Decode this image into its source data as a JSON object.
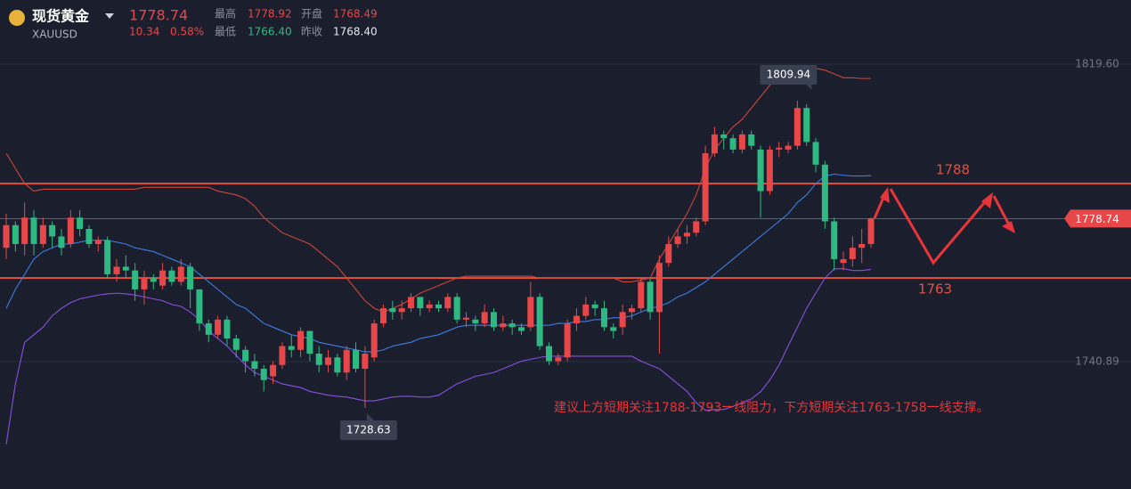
{
  "header": {
    "name": "现货黄金",
    "symbol": "XAUUSD",
    "price": "1778.74",
    "change": "10.34",
    "change_pct": "0.58%",
    "high_label": "最高",
    "high": "1778.92",
    "open_label": "开盘",
    "open": "1768.49",
    "low_label": "最低",
    "low": "1766.40",
    "prev_label": "昨收",
    "prev": "1768.40"
  },
  "chart_data": {
    "type": "candlestick",
    "up_color": "#e8474a",
    "down_color": "#2fb982",
    "ylim": [
      1707.18,
      1836.57
    ],
    "yticks": [
      {
        "value": 1819.6,
        "label": "1819.60"
      },
      1740.89
    ],
    "grid": true,
    "open": [
      1771,
      1777,
      1772,
      1779,
      1772,
      1777,
      1774,
      1772,
      1779,
      1776,
      1772,
      1773,
      1764,
      1766,
      1765,
      1760,
      1763,
      1761,
      1765,
      1762,
      1766,
      1760,
      1751,
      1748,
      1752,
      1747,
      1744,
      1741,
      1739,
      1737,
      1740,
      1745,
      1744,
      1749,
      1743,
      1740,
      1742,
      1738,
      1744,
      1739,
      1742,
      1751,
      1755,
      1754,
      1755,
      1758,
      1755,
      1756,
      1755,
      1758,
      1752,
      1752,
      1751,
      1754,
      1750,
      1751,
      1750,
      1750,
      1758,
      1745,
      1741,
      1742,
      1751,
      1753,
      1756,
      1755,
      1750,
      1750,
      1754,
      1755,
      1762,
      1754,
      1767,
      1772,
      1774,
      1775,
      1778,
      1796,
      1801,
      1800,
      1797,
      1801,
      1797,
      1786,
      1797,
      1797,
      1798,
      1808,
      1799,
      1793,
      1778,
      1767,
      1768,
      1771,
      1772
    ],
    "high": [
      1780,
      1778,
      1783,
      1781,
      1779,
      1778,
      1776,
      1781,
      1781,
      1777,
      1774,
      1774,
      1768,
      1769,
      1767,
      1765,
      1764,
      1767,
      1766,
      1768,
      1767,
      1760,
      1752,
      1753,
      1753,
      1748,
      1745,
      1743,
      1740,
      1741,
      1746,
      1748,
      1750,
      1749,
      1745,
      1744,
      1743,
      1745,
      1746,
      1745,
      1752,
      1756,
      1757,
      1757,
      1759,
      1758,
      1757,
      1757,
      1759,
      1759,
      1754,
      1753,
      1756,
      1755,
      1753,
      1752,
      1751,
      1762,
      1759,
      1746,
      1743,
      1752,
      1755,
      1758,
      1757,
      1757,
      1751,
      1756,
      1756,
      1763,
      1763,
      1769,
      1774,
      1776,
      1777,
      1779,
      1798,
      1803,
      1802,
      1801,
      1802,
      1802,
      1798,
      1798,
      1799,
      1799,
      1809.94,
      1809,
      1800,
      1794,
      1779,
      1770,
      1774,
      1776,
      1779
    ],
    "low": [
      1768,
      1770,
      1769,
      1769,
      1771,
      1771,
      1769,
      1771,
      1774,
      1771,
      1770,
      1763,
      1762,
      1763,
      1757,
      1756,
      1760,
      1760,
      1761,
      1761,
      1755,
      1749,
      1746,
      1747,
      1745,
      1742,
      1738,
      1737,
      1733,
      1735,
      1739,
      1742,
      1742,
      1741,
      1738,
      1738,
      1737,
      1736,
      1738,
      1728.63,
      1741,
      1750,
      1752,
      1752,
      1754,
      1753,
      1754,
      1754,
      1754,
      1751,
      1750,
      1749,
      1750,
      1749,
      1749,
      1748,
      1748,
      1749,
      1744,
      1740,
      1740,
      1741,
      1749,
      1752,
      1753,
      1749,
      1747,
      1748,
      1752,
      1754,
      1752,
      1743,
      1766,
      1771,
      1772,
      1774,
      1777,
      1795,
      1797,
      1796,
      1796,
      1797,
      1779,
      1785,
      1795,
      1796,
      1797,
      1798,
      1791,
      1776,
      1765,
      1765,
      1766,
      1767,
      1771
    ],
    "close": [
      1777,
      1772,
      1779,
      1772,
      1777,
      1774,
      1771,
      1779,
      1776,
      1772,
      1773,
      1764,
      1766,
      1765,
      1760,
      1763,
      1762,
      1765,
      1762,
      1766,
      1760,
      1751,
      1748,
      1752,
      1747,
      1744,
      1741,
      1739,
      1736,
      1740,
      1745,
      1744,
      1749,
      1743,
      1740,
      1742,
      1738,
      1744,
      1739,
      1743,
      1751,
      1755,
      1754,
      1755,
      1758,
      1755,
      1756,
      1755,
      1758,
      1752,
      1752.5,
      1751,
      1754,
      1750,
      1751,
      1750,
      1749,
      1758,
      1745,
      1741,
      1742,
      1751,
      1753,
      1756,
      1755,
      1750,
      1749,
      1754,
      1755,
      1762,
      1754,
      1767,
      1772,
      1774,
      1775,
      1778,
      1796,
      1801,
      1800,
      1797,
      1801,
      1798,
      1786,
      1797,
      1797.5,
      1798,
      1808,
      1799,
      1793,
      1778,
      1768,
      1768,
      1771,
      1772,
      1778.74
    ],
    "bands": [
      {
        "color": "#c8473a",
        "values": [
          1796,
          1792,
          1788,
          1786,
          1786.5,
          1786.5,
          1786.5,
          1786.5,
          1786.5,
          1786.5,
          1786.5,
          1786.5,
          1786.5,
          1786.5,
          1786.5,
          1787,
          1787,
          1787,
          1787,
          1787,
          1787,
          1787,
          1787,
          1786,
          1785.5,
          1785,
          1784,
          1782,
          1779,
          1777,
          1775,
          1774,
          1773,
          1772,
          1770,
          1768,
          1766,
          1763,
          1760,
          1757,
          1755,
          1754,
          1755,
          1756,
          1757.5,
          1759,
          1760,
          1761,
          1762,
          1763,
          1763.5,
          1763.5,
          1763.5,
          1763.5,
          1763.5,
          1763.5,
          1763.5,
          1763.5,
          1763,
          1763,
          1763,
          1763,
          1763,
          1763,
          1763,
          1763,
          1763,
          1762,
          1762,
          1762.5,
          1763,
          1768,
          1772,
          1776,
          1780,
          1785,
          1792,
          1797,
          1800,
          1803,
          1805,
          1808,
          1811,
          1814,
          1817,
          1818,
          1819,
          1819,
          1818.5,
          1818,
          1817,
          1816,
          1816,
          1815.8,
          1815.8
        ]
      },
      {
        "color": "#3c7de0",
        "values": [
          1755,
          1760,
          1764,
          1768,
          1770,
          1771,
          1772,
          1772,
          1772.5,
          1773,
          1773,
          1773,
          1772.5,
          1772,
          1771,
          1770.5,
          1770,
          1769,
          1768,
          1767,
          1766,
          1764,
          1762,
          1760,
          1758,
          1756,
          1755,
          1753,
          1751,
          1750,
          1749,
          1748,
          1747.5,
          1747,
          1746,
          1745.5,
          1745,
          1744.5,
          1744,
          1743.5,
          1743.5,
          1744,
          1745,
          1745.5,
          1746,
          1747,
          1747.5,
          1748,
          1749,
          1750,
          1750.5,
          1750.5,
          1750.5,
          1750.5,
          1750.5,
          1750.5,
          1750.5,
          1750.5,
          1750.5,
          1750.5,
          1751,
          1751,
          1751.5,
          1751.5,
          1752,
          1752,
          1752.5,
          1752.5,
          1753,
          1754,
          1755,
          1755.5,
          1756.5,
          1758,
          1759,
          1760.5,
          1762,
          1764,
          1766,
          1768,
          1770,
          1772,
          1774,
          1776,
          1778,
          1780,
          1783,
          1785,
          1788,
          1790,
          1790.5,
          1790.2,
          1790,
          1790,
          1790.1
        ]
      },
      {
        "color": "#8b4fe0",
        "values": [
          1719,
          1735,
          1746,
          1748,
          1750,
          1753,
          1755,
          1756.5,
          1757.5,
          1758,
          1758.5,
          1758.8,
          1759,
          1758.8,
          1758.5,
          1758,
          1757.5,
          1757,
          1756,
          1755.5,
          1754,
          1752,
          1749,
          1747,
          1745,
          1742.5,
          1740,
          1738,
          1737,
          1736,
          1735,
          1734.5,
          1734,
          1733,
          1732.5,
          1732,
          1731.7,
          1731.5,
          1731,
          1730.5,
          1730.5,
          1731,
          1731.5,
          1731.7,
          1731.7,
          1731.5,
          1731.5,
          1732,
          1733.5,
          1735,
          1736,
          1737,
          1737.5,
          1738,
          1739,
          1740,
          1741,
          1741.5,
          1742,
          1742.3,
          1742.3,
          1742.3,
          1742.3,
          1742.3,
          1742.3,
          1742.3,
          1742.3,
          1742.3,
          1742.3,
          1741,
          1740,
          1739,
          1737,
          1735,
          1733,
          1730,
          1728,
          1728.2,
          1728.2,
          1729,
          1730,
          1731,
          1732.9,
          1736,
          1740,
          1745,
          1750,
          1755,
          1759,
          1763,
          1765.4,
          1765.5,
          1765,
          1765,
          1765.3
        ]
      }
    ],
    "levels": [
      1788,
      1763
    ],
    "level_color": "#e2503f",
    "annotation": "建议上方短期关注1788-1793一线阻力，下方短期关注1763-1758一线支撑。"
  }
}
